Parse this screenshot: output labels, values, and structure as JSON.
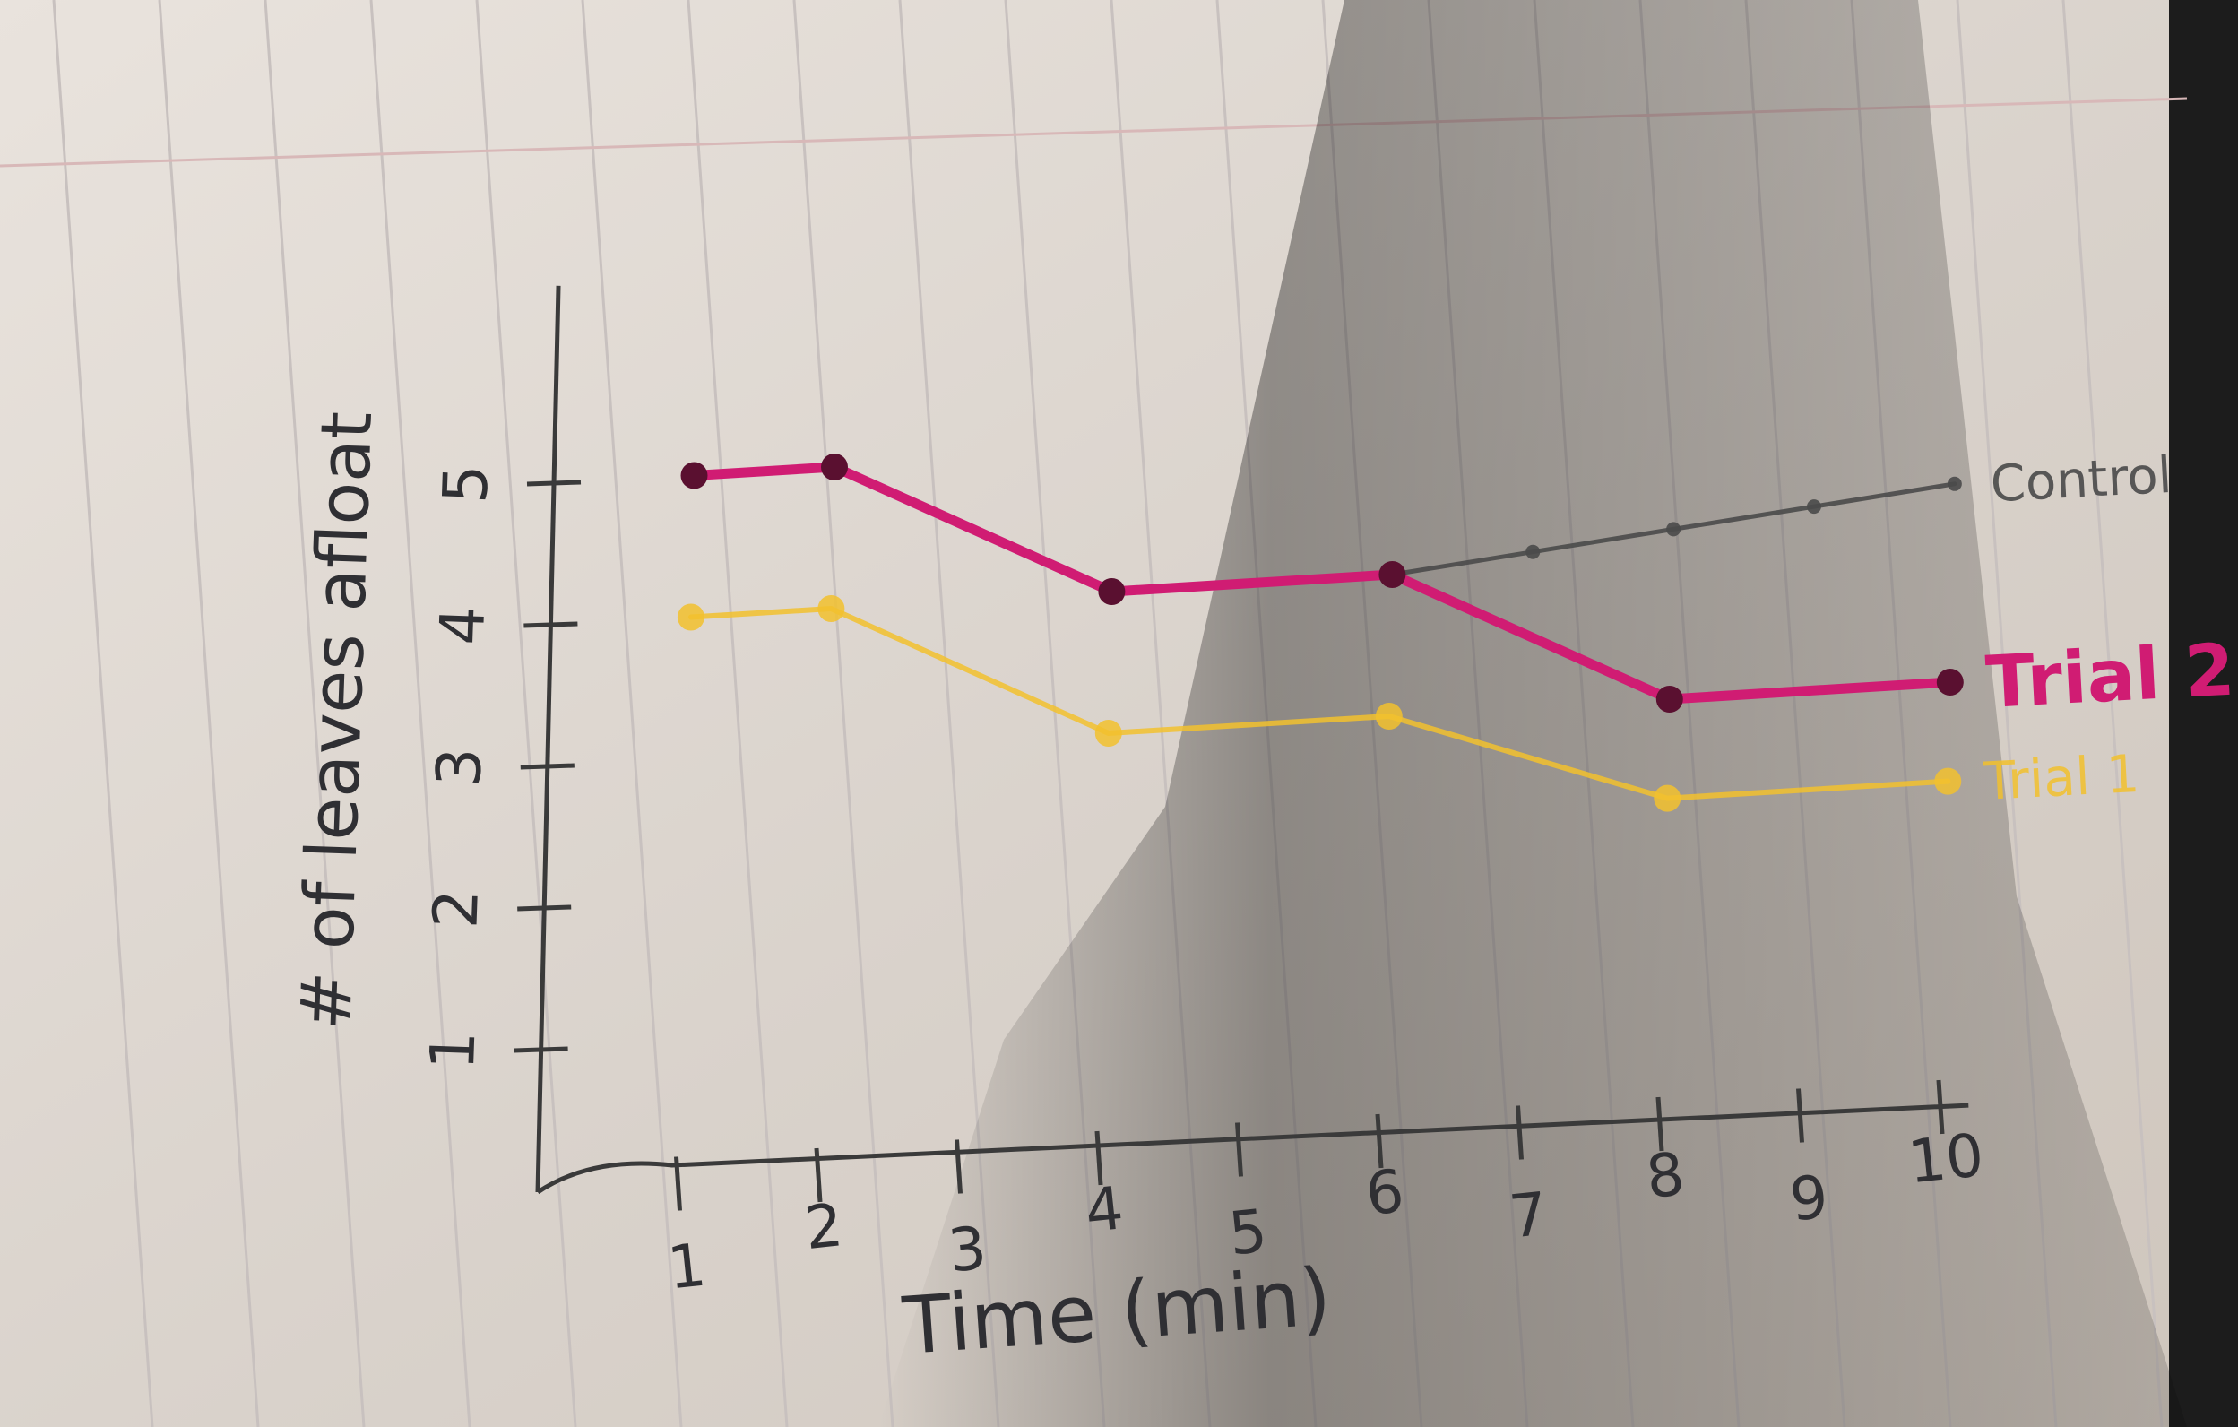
{
  "chart_data": {
    "type": "line",
    "xlabel": "Time (min)",
    "ylabel": "# of leaves afloat",
    "x_ticks": [
      "1",
      "2",
      "3",
      "4",
      "5",
      "6",
      "7",
      "8",
      "9",
      "10"
    ],
    "y_ticks": [
      "1",
      "2",
      "3",
      "4",
      "5"
    ],
    "xlim": [
      0,
      10
    ],
    "ylim": [
      0,
      5
    ],
    "grid": false,
    "legend_placement": "right, at line ends",
    "series": [
      {
        "name": "Control",
        "color": "#4a4a4a",
        "x": [
          1,
          2,
          4,
          6,
          7,
          8,
          9,
          10
        ],
        "y": [
          5,
          5,
          4,
          4,
          4.1,
          4.2,
          4.3,
          4.4
        ]
      },
      {
        "name": "Trial 2",
        "color": "#d01c73",
        "x": [
          1,
          2,
          4,
          6,
          8,
          10
        ],
        "y": [
          5,
          5,
          4,
          4,
          3,
          3
        ]
      },
      {
        "name": "Trial 1",
        "color": "#f2c12e",
        "x": [
          1,
          2,
          4,
          6,
          8,
          10
        ],
        "y": [
          4,
          4,
          3,
          3,
          2.3,
          2.3
        ]
      }
    ]
  }
}
